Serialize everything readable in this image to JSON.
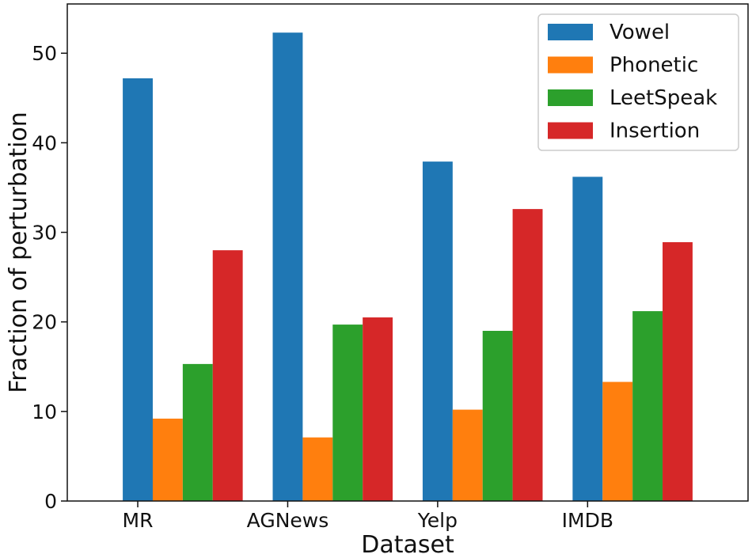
{
  "chart_data": {
    "type": "bar",
    "title": "",
    "xlabel": "Dataset",
    "ylabel": "Fraction of perturbation",
    "categories": [
      "MR",
      "AGNews",
      "Yelp",
      "IMDB"
    ],
    "ylim": [
      0,
      55.5
    ],
    "yticks": [
      0,
      10,
      20,
      30,
      40,
      50
    ],
    "ytick_labels": [
      "0",
      "10",
      "20",
      "30",
      "40",
      "50"
    ],
    "grid": false,
    "legend_position": "top-right",
    "series": [
      {
        "name": "Vowel",
        "color": "#1f77b4",
        "values": [
          47.2,
          52.3,
          37.9,
          36.2
        ]
      },
      {
        "name": "Phonetic",
        "color": "#ff7f0e",
        "values": [
          9.2,
          7.1,
          10.2,
          13.3
        ]
      },
      {
        "name": "LeetSpeak",
        "color": "#2ca02c",
        "values": [
          15.3,
          19.7,
          19.0,
          21.2
        ]
      },
      {
        "name": "Insertion",
        "color": "#d62728",
        "values": [
          28.0,
          20.5,
          32.6,
          28.9
        ]
      }
    ]
  }
}
